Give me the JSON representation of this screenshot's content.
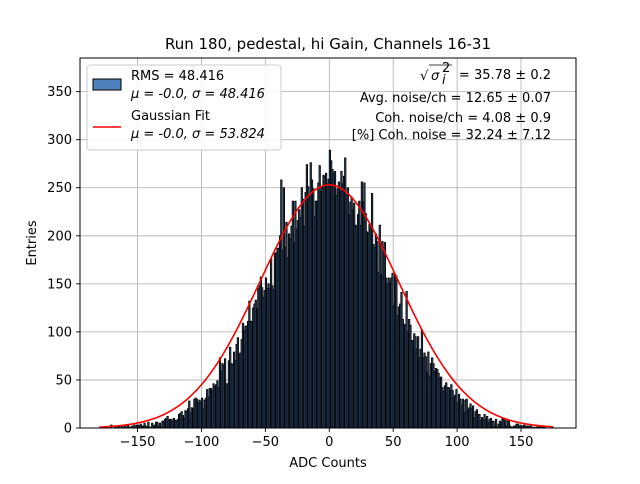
{
  "chart_data": {
    "type": "bar",
    "title": "Run 180, pedestal, hi Gain, Channels 16-31",
    "xlabel": "ADC Counts",
    "ylabel": "Entries",
    "xlim": [
      -195,
      193
    ],
    "ylim": [
      0,
      385
    ],
    "xticks": [
      -150,
      -100,
      -50,
      0,
      50,
      100,
      150
    ],
    "xtick_labels": [
      "−150",
      "−100",
      "−50",
      "0",
      "50",
      "100",
      "150"
    ],
    "yticks": [
      0,
      50,
      100,
      150,
      200,
      250,
      300,
      350
    ],
    "ytick_labels": [
      "0",
      "50",
      "100",
      "150",
      "200",
      "250",
      "300",
      "350"
    ],
    "grid": true,
    "legend_position": "upper left",
    "histogram": {
      "name": "RMS = 48.416",
      "stats_label": "μ = -0.0, σ = 48.416",
      "mean": 0.0,
      "sigma": 48.416,
      "peak_entries": 253,
      "bin_width": 1,
      "x_range": [
        -180,
        175
      ],
      "color": "#4f81bd",
      "edge_color": "#000000",
      "highest_bins": [
        {
          "x": -18,
          "y": 274
        },
        {
          "x": -38,
          "y": 258
        },
        {
          "x": -4,
          "y": 262
        },
        {
          "x": 11,
          "y": 262
        },
        {
          "x": 27,
          "y": 255
        },
        {
          "x": -36,
          "y": 250
        },
        {
          "x": -22,
          "y": 250
        },
        {
          "x": 14,
          "y": 250
        },
        {
          "x": 33,
          "y": 244
        }
      ]
    },
    "fit": {
      "name": "Gaussian Fit",
      "stats_label": "μ = -0.0, σ = 53.824",
      "mean": 0.0,
      "sigma": 53.824,
      "amplitude": 253,
      "x_range": [
        -180,
        175
      ],
      "color": "#ff0000"
    },
    "annotations": {
      "noise_line_value": " = 35.78 ± 0.2",
      "noise_symbol_radical": "√",
      "noise_symbol_base": "σ",
      "noise_symbol_sub": "i",
      "noise_symbol_sup": "2",
      "avg_noise": "Avg. noise/ch = 12.65 ± 0.07",
      "coh_noise": "Coh. noise/ch = 4.08 ± 0.9",
      "coh_noise_pct": "[%] Coh. noise = 32.24 ± 7.12"
    }
  }
}
